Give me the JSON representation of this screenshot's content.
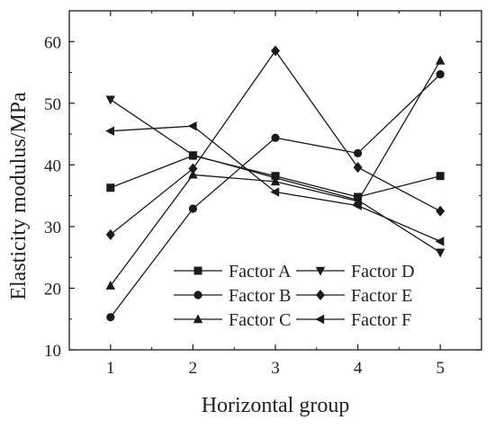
{
  "chart_data": {
    "type": "line",
    "title": "",
    "xlabel": "Horizontal group",
    "ylabel": "Elasticity modulus/MPa",
    "x": [
      1,
      2,
      3,
      4,
      5
    ],
    "xlim": [
      0.5,
      5.5
    ],
    "ylim": [
      10,
      65
    ],
    "xticks": [
      "1",
      "2",
      "3",
      "4",
      "5"
    ],
    "yticks": [
      "10",
      "20",
      "30",
      "40",
      "50",
      "60"
    ],
    "grid": false,
    "legend_position": "bottom-center",
    "series": [
      {
        "name": "Factor A",
        "marker": "square",
        "values": [
          36.3,
          41.5,
          38.2,
          34.8,
          38.2
        ]
      },
      {
        "name": "Factor B",
        "marker": "circle",
        "values": [
          15.3,
          32.9,
          44.4,
          41.9,
          54.7
        ]
      },
      {
        "name": "Factor C",
        "marker": "triangle-up",
        "values": [
          20.4,
          38.4,
          37.3,
          34.1,
          56.9
        ]
      },
      {
        "name": "Factor D",
        "marker": "triangle-down",
        "values": [
          50.6,
          41.6,
          37.9,
          34.3,
          25.8
        ]
      },
      {
        "name": "Factor E",
        "marker": "diamond",
        "values": [
          28.7,
          39.4,
          58.5,
          39.6,
          32.5
        ]
      },
      {
        "name": "Factor F",
        "marker": "triangle-left",
        "values": [
          45.5,
          46.3,
          35.6,
          33.4,
          27.6
        ]
      }
    ],
    "line_color": "#1a1a1a"
  }
}
